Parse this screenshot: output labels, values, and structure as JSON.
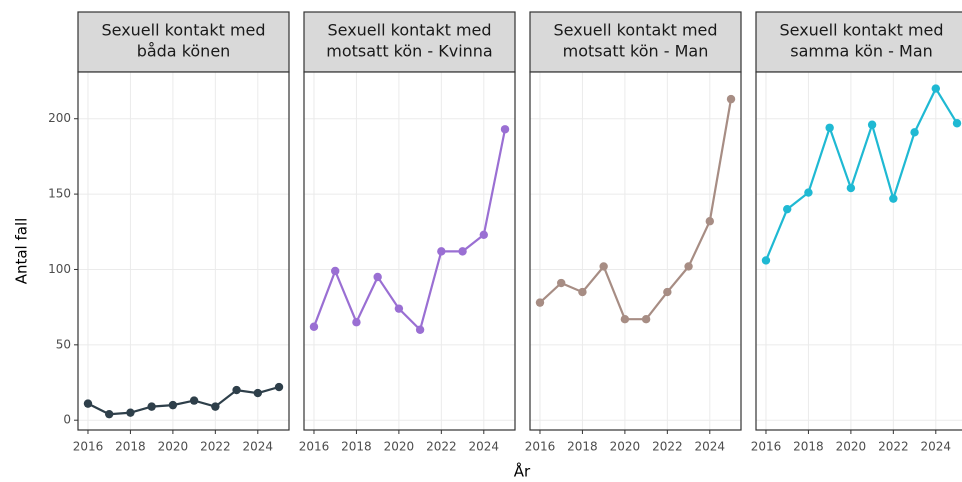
{
  "chart_data": {
    "type": "line",
    "ylabel": "Antal fall",
    "xlabel": "År",
    "x": [
      2016,
      2017,
      2018,
      2019,
      2020,
      2021,
      2022,
      2023,
      2024,
      2025
    ],
    "xlim": [
      2015.53,
      2025.47
    ],
    "xticks": [
      2016,
      2018,
      2020,
      2022,
      2024
    ],
    "ylim": [
      -6.5,
      231
    ],
    "yticks": [
      0,
      50,
      100,
      150,
      200
    ],
    "grid": true,
    "panels": [
      {
        "title_lines": [
          "Sexuell kontakt med",
          "båda könen"
        ],
        "color": "#2e3f4a",
        "values": [
          11,
          4,
          5,
          9,
          10,
          13,
          9,
          20,
          18,
          22
        ]
      },
      {
        "title_lines": [
          "Sexuell kontakt med",
          "motsatt kön - Kvinna"
        ],
        "color": "#9a6fd3",
        "values": [
          62,
          99,
          65,
          95,
          74,
          60,
          112,
          112,
          123,
          193
        ]
      },
      {
        "title_lines": [
          "Sexuell kontakt med",
          "motsatt kön - Man"
        ],
        "color": "#a78d84",
        "values": [
          78,
          91,
          85,
          102,
          67,
          67,
          85,
          102,
          132,
          213
        ]
      },
      {
        "title_lines": [
          "Sexuell kontakt med",
          "samma kön - Man"
        ],
        "color": "#1fb9d3",
        "values": [
          106,
          140,
          151,
          194,
          154,
          196,
          147,
          191,
          220,
          197
        ]
      }
    ]
  }
}
